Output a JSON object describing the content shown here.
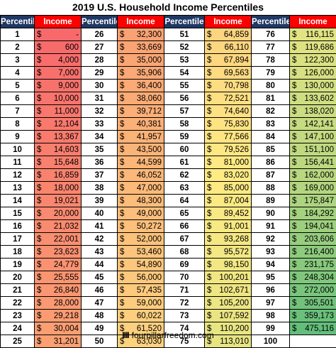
{
  "title": "2019 U.S. Household Income Percentiles",
  "headers": {
    "percentile": "Percentile",
    "income": "Income"
  },
  "footer": {
    "logo_mark": "IIII",
    "site": "fourpillarfreedom.com"
  },
  "currency_symbol": "$",
  "columns": [
    {
      "rows": [
        {
          "p": "1",
          "v": "-"
        },
        {
          "p": "2",
          "v": "600"
        },
        {
          "p": "3",
          "v": "4,000"
        },
        {
          "p": "4",
          "v": "7,000"
        },
        {
          "p": "5",
          "v": "9,000"
        },
        {
          "p": "6",
          "v": "10,000"
        },
        {
          "p": "7",
          "v": "11,000"
        },
        {
          "p": "8",
          "v": "12,104"
        },
        {
          "p": "9",
          "v": "13,367"
        },
        {
          "p": "10",
          "v": "14,603"
        },
        {
          "p": "11",
          "v": "15,648"
        },
        {
          "p": "12",
          "v": "16,859"
        },
        {
          "p": "13",
          "v": "18,000"
        },
        {
          "p": "14",
          "v": "19,021"
        },
        {
          "p": "15",
          "v": "20,000"
        },
        {
          "p": "16",
          "v": "21,032"
        },
        {
          "p": "17",
          "v": "22,001"
        },
        {
          "p": "18",
          "v": "23,623"
        },
        {
          "p": "19",
          "v": "24,779"
        },
        {
          "p": "20",
          "v": "25,555"
        },
        {
          "p": "21",
          "v": "26,840"
        },
        {
          "p": "22",
          "v": "28,000"
        },
        {
          "p": "23",
          "v": "29,218"
        },
        {
          "p": "24",
          "v": "30,004"
        },
        {
          "p": "25",
          "v": "31,201"
        }
      ]
    },
    {
      "rows": [
        {
          "p": "26",
          "v": "32,300"
        },
        {
          "p": "27",
          "v": "33,669"
        },
        {
          "p": "28",
          "v": "35,000"
        },
        {
          "p": "29",
          "v": "35,906"
        },
        {
          "p": "30",
          "v": "36,400"
        },
        {
          "p": "31",
          "v": "38,060"
        },
        {
          "p": "32",
          "v": "39,712"
        },
        {
          "p": "33",
          "v": "40,381"
        },
        {
          "p": "34",
          "v": "41,957"
        },
        {
          "p": "35",
          "v": "43,500"
        },
        {
          "p": "36",
          "v": "44,599"
        },
        {
          "p": "37",
          "v": "46,052"
        },
        {
          "p": "38",
          "v": "47,000"
        },
        {
          "p": "39",
          "v": "48,300"
        },
        {
          "p": "40",
          "v": "49,000"
        },
        {
          "p": "41",
          "v": "50,272"
        },
        {
          "p": "42",
          "v": "52,000"
        },
        {
          "p": "43",
          "v": "53,460"
        },
        {
          "p": "44",
          "v": "54,890"
        },
        {
          "p": "45",
          "v": "56,000"
        },
        {
          "p": "46",
          "v": "57,435"
        },
        {
          "p": "47",
          "v": "59,000"
        },
        {
          "p": "48",
          "v": "60,022"
        },
        {
          "p": "49",
          "v": "61,520"
        },
        {
          "p": "50",
          "v": "63,030"
        }
      ]
    },
    {
      "rows": [
        {
          "p": "51",
          "v": "64,859"
        },
        {
          "p": "52",
          "v": "66,110"
        },
        {
          "p": "53",
          "v": "67,894"
        },
        {
          "p": "54",
          "v": "69,563"
        },
        {
          "p": "55",
          "v": "70,798"
        },
        {
          "p": "56",
          "v": "72,521"
        },
        {
          "p": "57",
          "v": "74,640"
        },
        {
          "p": "58",
          "v": "75,830"
        },
        {
          "p": "59",
          "v": "77,566"
        },
        {
          "p": "60",
          "v": "79,526"
        },
        {
          "p": "61",
          "v": "81,000"
        },
        {
          "p": "62",
          "v": "83,020"
        },
        {
          "p": "63",
          "v": "85,000"
        },
        {
          "p": "64",
          "v": "87,004"
        },
        {
          "p": "65",
          "v": "89,452"
        },
        {
          "p": "66",
          "v": "91,001"
        },
        {
          "p": "67",
          "v": "93,268"
        },
        {
          "p": "68",
          "v": "95,572"
        },
        {
          "p": "69",
          "v": "98,150"
        },
        {
          "p": "70",
          "v": "100,201"
        },
        {
          "p": "71",
          "v": "102,671"
        },
        {
          "p": "72",
          "v": "105,200"
        },
        {
          "p": "73",
          "v": "107,592"
        },
        {
          "p": "74",
          "v": "110,200"
        },
        {
          "p": "75",
          "v": "113,010"
        }
      ]
    },
    {
      "rows": [
        {
          "p": "76",
          "v": "116,115"
        },
        {
          "p": "77",
          "v": "119,686"
        },
        {
          "p": "78",
          "v": "122,300"
        },
        {
          "p": "79",
          "v": "126,000"
        },
        {
          "p": "80",
          "v": "130,000"
        },
        {
          "p": "81",
          "v": "133,602"
        },
        {
          "p": "82",
          "v": "138,020"
        },
        {
          "p": "83",
          "v": "142,141"
        },
        {
          "p": "84",
          "v": "147,100"
        },
        {
          "p": "85",
          "v": "151,100"
        },
        {
          "p": "86",
          "v": "156,441"
        },
        {
          "p": "87",
          "v": "162,000"
        },
        {
          "p": "88",
          "v": "169,000"
        },
        {
          "p": "89",
          "v": "175,847"
        },
        {
          "p": "90",
          "v": "184,292"
        },
        {
          "p": "91",
          "v": "194,041"
        },
        {
          "p": "92",
          "v": "203,606"
        },
        {
          "p": "93",
          "v": "216,400"
        },
        {
          "p": "94",
          "v": "231,175"
        },
        {
          "p": "95",
          "v": "248,304"
        },
        {
          "p": "96",
          "v": "272,000"
        },
        {
          "p": "97",
          "v": "305,501"
        },
        {
          "p": "98",
          "v": "359,173"
        },
        {
          "p": "99",
          "v": "475,116"
        },
        {
          "p": "100",
          "v": ""
        }
      ]
    }
  ]
}
